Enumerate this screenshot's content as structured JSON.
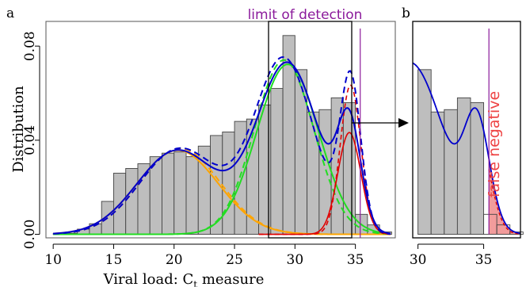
{
  "colors": {
    "bar_fill": "#bebebe",
    "bar_stroke": "#444444",
    "total": "#0000cc",
    "comp_early": "#ffa500",
    "comp_mid": "#22dd22",
    "comp_late": "#e00000",
    "lod": "#8b1a9b",
    "false_neg_fill": "#f29c9c",
    "false_neg_text": "#ee4444"
  },
  "chart_data": [
    {
      "type": "bar",
      "panel_label": "a",
      "xlabel": "Viral load: C",
      "xlabel_sub": "t",
      "xlabel_suffix": " measure",
      "ylabel": "Distribution",
      "xlim": [
        9.4,
        38.3
      ],
      "ylim": [
        -0.0015,
        0.0905
      ],
      "xticks": [
        10,
        15,
        20,
        25,
        30,
        35
      ],
      "yticks": [
        0.0,
        0.04,
        0.08
      ],
      "ytick_labels": [
        "0.00",
        "0.04",
        "0.08"
      ],
      "annotation": "limit of detection",
      "limit_of_detection": 35.4,
      "bin_width": 1,
      "bins": [
        {
          "x0": 10,
          "y": 0.0003
        },
        {
          "x0": 11,
          "y": 0.0005
        },
        {
          "x0": 12,
          "y": 0.0022
        },
        {
          "x0": 13,
          "y": 0.0045
        },
        {
          "x0": 14,
          "y": 0.014
        },
        {
          "x0": 15,
          "y": 0.026
        },
        {
          "x0": 16,
          "y": 0.028
        },
        {
          "x0": 17,
          "y": 0.03
        },
        {
          "x0": 18,
          "y": 0.033
        },
        {
          "x0": 19,
          "y": 0.0345
        },
        {
          "x0": 20,
          "y": 0.035
        },
        {
          "x0": 21,
          "y": 0.033
        },
        {
          "x0": 22,
          "y": 0.0375
        },
        {
          "x0": 23,
          "y": 0.042
        },
        {
          "x0": 24,
          "y": 0.0435
        },
        {
          "x0": 25,
          "y": 0.048
        },
        {
          "x0": 26,
          "y": 0.049
        },
        {
          "x0": 27,
          "y": 0.055
        },
        {
          "x0": 28,
          "y": 0.062
        },
        {
          "x0": 29,
          "y": 0.0845
        },
        {
          "x0": 30,
          "y": 0.07
        },
        {
          "x0": 31,
          "y": 0.052
        },
        {
          "x0": 32,
          "y": 0.053
        },
        {
          "x0": 33,
          "y": 0.058
        },
        {
          "x0": 34,
          "y": 0.056
        },
        {
          "x0": 35,
          "y": 0.0085
        },
        {
          "x0": 36,
          "y": 0.004
        },
        {
          "x0": 37,
          "y": 0.001
        }
      ],
      "series": [
        {
          "key": "early",
          "style": "solid",
          "mu": 20.3,
          "sd": 3.35,
          "w": 0.3
        },
        {
          "key": "early_fit",
          "style": "dashed",
          "mu": 20.5,
          "sd": 3.3,
          "w": 0.302
        },
        {
          "key": "mid",
          "style": "solid",
          "mu": 29.4,
          "sd": 2.55,
          "w": 0.462
        },
        {
          "key": "mid_fit",
          "style": "dashed",
          "mu": 29.1,
          "sd": 2.45,
          "w": 0.455
        },
        {
          "key": "late",
          "style": "solid",
          "mu": 34.5,
          "sd": 0.95,
          "w": 0.103
        },
        {
          "key": "late_fit",
          "style": "dashed",
          "mu": 34.6,
          "sd": 0.85,
          "w": 0.135
        }
      ]
    },
    {
      "type": "bar",
      "panel_label": "b",
      "xlim": [
        29.6,
        37.8
      ],
      "ylim": [
        -0.0015,
        0.0905
      ],
      "xticks": [
        30,
        35
      ],
      "annotation": "false negative",
      "limit_of_detection": 35.4
    }
  ]
}
